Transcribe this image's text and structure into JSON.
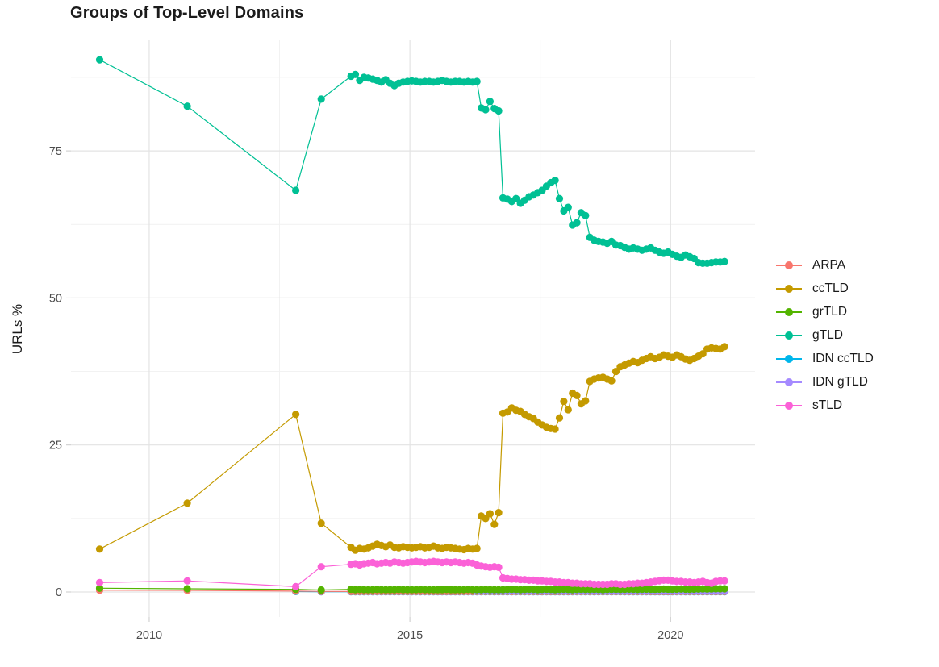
{
  "title": "Groups of Top-Level Domains",
  "y_axis_title": "URLs %",
  "chart_data": {
    "type": "line",
    "title": "Groups of Top-Level Domains",
    "xlabel": "",
    "ylabel": "URLs %",
    "x_domain": [
      2008.5,
      2021.62
    ],
    "y_domain": [
      -4.25,
      93.8
    ],
    "x_ticks": [
      2010,
      2015,
      2020
    ],
    "x_minor_ticks": [
      2012.5,
      2017.5
    ],
    "y_ticks": [
      0,
      25,
      50,
      75
    ],
    "y_minor_ticks": [
      12.5,
      37.5,
      62.5,
      87.5
    ],
    "grid": true,
    "legend_position": "right",
    "colors": {
      "major_grid": "#e3e3e3",
      "minor_grid": "#f1f1f1",
      "tick": "#c9c9c9",
      "tick_label": "#4d4d4d"
    },
    "draw_order": [
      4,
      0,
      5,
      2,
      3,
      1,
      6
    ],
    "series": [
      {
        "name": "ARPA",
        "color": "#F8766D",
        "pre": [
          [
            2009.05,
            0.3
          ],
          [
            2010.73,
            0.28
          ],
          [
            2012.81,
            0.15
          ],
          [
            2013.3,
            0.1
          ]
        ],
        "dense": {
          "start": 2013.87,
          "step": 0.0833,
          "count": 87,
          "const": 0.08
        }
      },
      {
        "name": "ccTLD",
        "color": "#C49A00",
        "pre": [
          [
            2009.05,
            7.3
          ],
          [
            2010.73,
            15.1
          ],
          [
            2012.81,
            30.2
          ],
          [
            2013.3,
            11.7
          ]
        ],
        "dense": {
          "start": 2013.87,
          "step": 0.0833,
          "values": [
            7.6,
            7.1,
            7.4,
            7.3,
            7.5,
            7.8,
            8.1,
            7.9,
            7.7,
            8.0,
            7.6,
            7.5,
            7.7,
            7.6,
            7.5,
            7.6,
            7.7,
            7.5,
            7.6,
            7.8,
            7.5,
            7.4,
            7.6,
            7.5,
            7.4,
            7.3,
            7.2,
            7.4,
            7.3,
            7.4,
            12.9,
            12.5,
            13.3,
            11.5,
            13.5,
            30.4,
            30.6,
            31.3,
            30.9,
            30.7,
            30.2,
            29.8,
            29.5,
            28.9,
            28.4,
            28.0,
            27.8,
            27.7,
            29.6,
            32.4,
            31.0,
            33.8,
            33.4,
            32.0,
            32.5,
            35.8,
            36.2,
            36.4,
            36.5,
            36.2,
            35.9,
            37.5,
            38.3,
            38.6,
            38.9,
            39.2,
            39.0,
            39.4,
            39.7,
            40.0,
            39.7,
            39.9,
            40.3,
            40.1,
            39.9,
            40.3,
            40.0,
            39.6,
            39.4,
            39.7,
            40.1,
            40.5,
            41.3,
            41.5,
            41.4,
            41.3,
            41.7
          ]
        }
      },
      {
        "name": "grTLD",
        "color": "#53B400",
        "pre": [
          [
            2009.05,
            0.65
          ],
          [
            2010.73,
            0.55
          ],
          [
            2012.81,
            0.45
          ],
          [
            2013.3,
            0.35
          ]
        ],
        "dense": {
          "start": 2013.87,
          "step": 0.0833,
          "values": [
            0.45,
            0.4,
            0.42,
            0.4,
            0.38,
            0.4,
            0.42,
            0.4,
            0.38,
            0.4,
            0.4,
            0.42,
            0.4,
            0.4,
            0.38,
            0.4,
            0.42,
            0.4,
            0.4,
            0.38,
            0.4,
            0.4,
            0.42,
            0.4,
            0.38,
            0.4,
            0.4,
            0.42,
            0.4,
            0.4,
            0.4,
            0.42,
            0.4,
            0.4,
            0.38,
            0.4,
            0.42,
            0.45,
            0.42,
            0.4,
            0.42,
            0.45,
            0.42,
            0.4,
            0.42,
            0.45,
            0.42,
            0.4,
            0.42,
            0.45,
            0.42,
            0.4,
            0.42,
            0.45,
            0.42,
            0.42,
            0.45,
            0.42,
            0.4,
            0.42,
            0.45,
            0.45,
            0.42,
            0.45,
            0.48,
            0.45,
            0.42,
            0.45,
            0.48,
            0.45,
            0.45,
            0.48,
            0.5,
            0.48,
            0.45,
            0.48,
            0.5,
            0.48,
            0.45,
            0.48,
            0.5,
            0.52,
            0.5,
            0.52,
            0.55,
            0.55,
            0.55
          ]
        }
      },
      {
        "name": "gTLD",
        "color": "#00C094",
        "pre": [
          [
            2009.05,
            90.5
          ],
          [
            2010.73,
            82.6
          ],
          [
            2012.81,
            68.3
          ],
          [
            2013.3,
            83.8
          ]
        ],
        "dense": {
          "start": 2013.87,
          "step": 0.0833,
          "values": [
            87.7,
            88.0,
            87.0,
            87.5,
            87.4,
            87.2,
            87.0,
            86.7,
            87.1,
            86.5,
            86.1,
            86.5,
            86.7,
            86.8,
            86.9,
            86.8,
            86.7,
            86.8,
            86.8,
            86.7,
            86.8,
            87.0,
            86.8,
            86.7,
            86.8,
            86.8,
            86.7,
            86.8,
            86.7,
            86.8,
            82.3,
            82.0,
            83.4,
            82.2,
            81.8,
            67.0,
            66.8,
            66.4,
            66.9,
            66.1,
            66.6,
            67.2,
            67.5,
            67.9,
            68.3,
            69.0,
            69.6,
            70.0,
            66.9,
            64.8,
            65.4,
            62.4,
            62.8,
            64.5,
            64.0,
            60.3,
            59.8,
            59.6,
            59.5,
            59.3,
            59.6,
            59.0,
            58.9,
            58.6,
            58.3,
            58.5,
            58.3,
            58.1,
            58.3,
            58.5,
            58.1,
            57.8,
            57.6,
            57.8,
            57.4,
            57.1,
            56.9,
            57.3,
            57.0,
            56.7,
            56.0,
            55.9,
            55.9,
            56.0,
            56.1,
            56.1,
            56.2
          ]
        }
      },
      {
        "name": "IDN ccTLD",
        "color": "#00B6EB",
        "pre": [
          [
            2012.81,
            0.08
          ],
          [
            2013.3,
            0.05
          ]
        ],
        "dense": {
          "start": 2013.87,
          "step": 0.0833,
          "count": 87,
          "const": 0.05
        }
      },
      {
        "name": "IDN gTLD",
        "color": "#A58AFF",
        "pre": [],
        "dense": {
          "start": 2016.29,
          "step": 0.0833,
          "count": 58,
          "const": 0.2
        }
      },
      {
        "name": "sTLD",
        "color": "#FB61D7",
        "pre": [
          [
            2009.05,
            1.6
          ],
          [
            2010.73,
            1.9
          ],
          [
            2012.81,
            0.9
          ],
          [
            2013.3,
            4.3
          ]
        ],
        "dense": {
          "start": 2013.87,
          "step": 0.0833,
          "values": [
            4.7,
            4.8,
            4.6,
            4.8,
            4.9,
            5.0,
            4.8,
            4.9,
            5.0,
            4.9,
            5.1,
            5.0,
            4.9,
            5.0,
            5.1,
            5.2,
            5.1,
            5.0,
            5.1,
            5.2,
            5.1,
            5.0,
            5.1,
            5.0,
            5.1,
            5.0,
            4.9,
            5.0,
            4.9,
            4.6,
            4.4,
            4.3,
            4.2,
            4.3,
            4.2,
            2.4,
            2.3,
            2.2,
            2.2,
            2.1,
            2.1,
            2.0,
            2.0,
            1.9,
            1.9,
            1.8,
            1.8,
            1.7,
            1.7,
            1.6,
            1.6,
            1.5,
            1.5,
            1.4,
            1.4,
            1.4,
            1.3,
            1.3,
            1.3,
            1.3,
            1.4,
            1.4,
            1.3,
            1.3,
            1.4,
            1.4,
            1.5,
            1.5,
            1.6,
            1.7,
            1.8,
            1.9,
            2.0,
            2.0,
            1.9,
            1.8,
            1.8,
            1.7,
            1.7,
            1.6,
            1.7,
            1.8,
            1.6,
            1.5,
            1.8,
            1.9,
            1.9
          ]
        }
      }
    ]
  }
}
